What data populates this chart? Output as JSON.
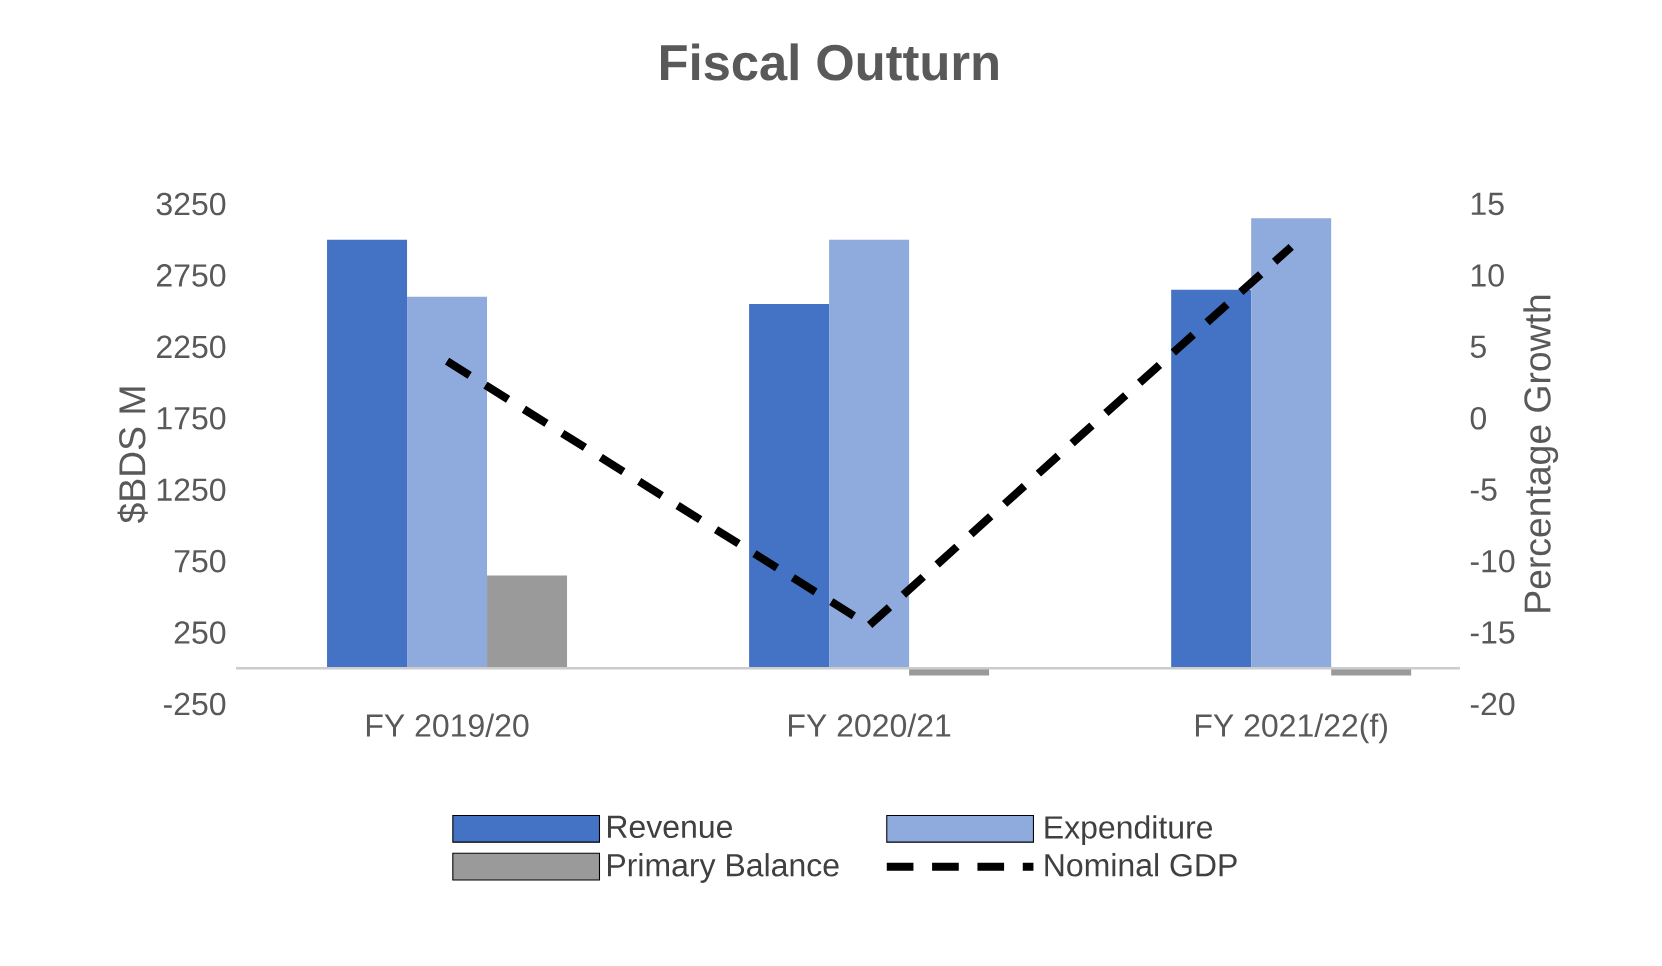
{
  "chart_data": {
    "type": "bar",
    "title": "Fiscal Outturn",
    "ylabel": "$BDS M",
    "y2label": "Percentage  Growth",
    "categories": [
      "FY 2019/20",
      "FY 2020/21",
      "FY 2021/22(f)"
    ],
    "series": [
      {
        "name": "Revenue",
        "color": "#4472c4",
        "values": [
          3000,
          2550,
          2650
        ]
      },
      {
        "name": "Expenditure",
        "color": "#8faadc",
        "values": [
          2600,
          3000,
          3150
        ]
      },
      {
        "name": "Primary Balance",
        "color": "#9a9a9a",
        "values": [
          650,
          -50,
          -50
        ]
      },
      {
        "name": "Nominal GDP",
        "type": "line",
        "axis": "y2",
        "color": "#000000",
        "line_style": "dashed",
        "marker": "none",
        "values": [
          4,
          -14.5,
          12
        ]
      }
    ],
    "ylim": [
      -250,
      3250
    ],
    "yticks": [
      -250,
      250,
      750,
      1250,
      1750,
      2250,
      2750,
      3250
    ],
    "y2lim": [
      -20,
      15
    ],
    "y2ticks": [
      -20,
      -15,
      -10,
      -5,
      0,
      5,
      10,
      15
    ],
    "legend": "bottom",
    "grid": false
  }
}
